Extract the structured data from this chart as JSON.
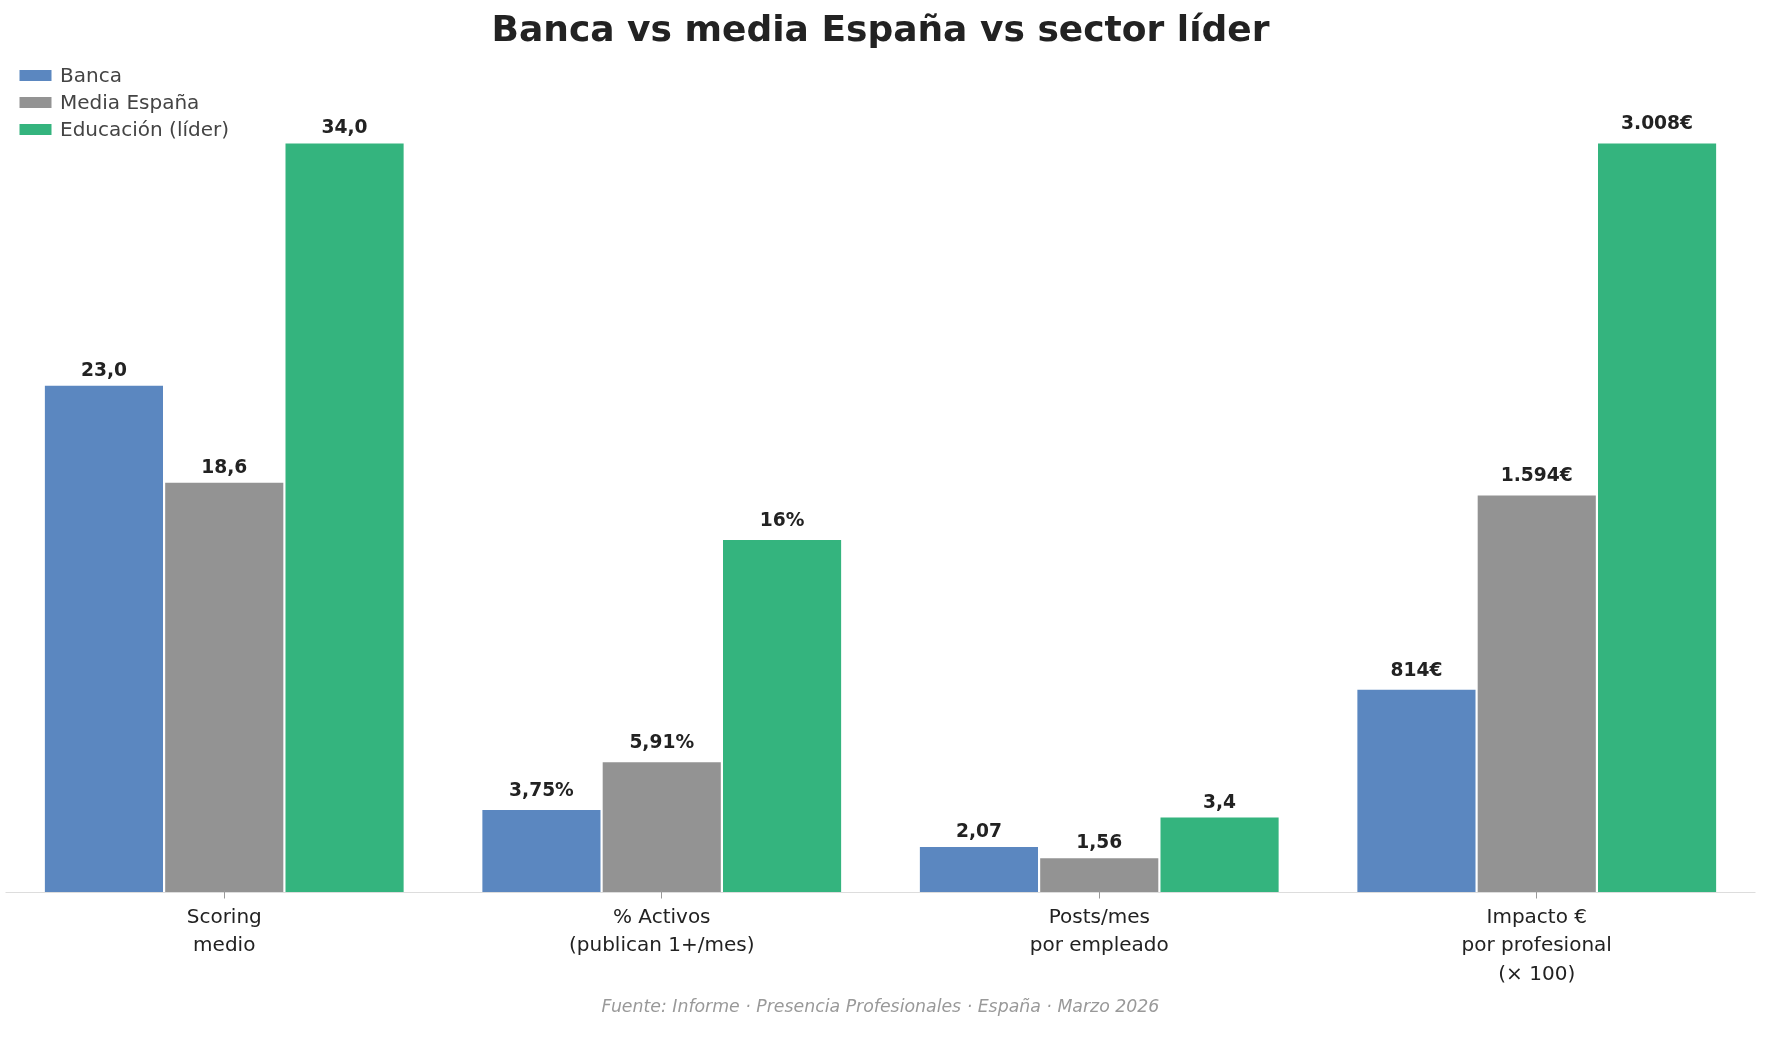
{
  "chart_data": {
    "type": "bar",
    "title": "Banca vs media España vs sector líder",
    "categories": [
      "Scoring\nmedio",
      "% Activos\n(publican 1+/mes)",
      "Posts/mes\npor empleado",
      "Impacto €\npor profesional\n(× 100)"
    ],
    "series": [
      {
        "name": "Banca",
        "color": "#5b87c0",
        "values": [
          23.0,
          3.75,
          2.07,
          null
        ],
        "value_labels": [
          "23,0",
          "3,75%",
          "2,07",
          null
        ]
      },
      {
        "name": "Media España",
        "color": "#939393",
        "values": [
          18.6,
          5.91,
          1.56,
          null
        ],
        "value_labels": [
          "18,6",
          "5,91%",
          "1,56",
          null
        ]
      },
      {
        "name": "Educación (líder)",
        "color": "#34b47e",
        "values": [
          34.0,
          16,
          3.4,
          null
        ],
        "value_labels": [
          "34,0",
          "16%",
          "3,4",
          null
        ]
      },
      {
        "color": "#5b87c0",
        "axis": "y2",
        "values": [
          null,
          null,
          null,
          814
        ],
        "value_labels": [
          null,
          null,
          null,
          "814€"
        ]
      },
      {
        "color": "#939393",
        "axis": "y2",
        "values": [
          null,
          null,
          null,
          1594
        ],
        "value_labels": [
          null,
          null,
          null,
          "1.594€"
        ]
      },
      {
        "color": "#34b47e",
        "axis": "y2",
        "values": [
          null,
          null,
          null,
          3008
        ],
        "value_labels": [
          null,
          null,
          null,
          "3.008€"
        ]
      }
    ],
    "legend": "top left",
    "grid": false,
    "annotations": [
      "Fuente: Informe · Presencia Profesionales · España · Marzo 2026"
    ]
  }
}
